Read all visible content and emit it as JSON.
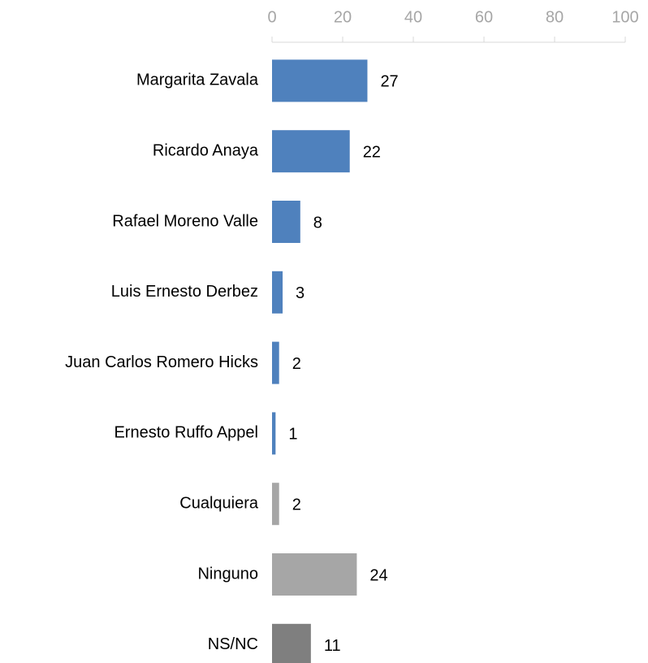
{
  "chart_data": {
    "type": "bar",
    "orientation": "horizontal",
    "categories": [
      "Margarita Zavala",
      "Ricardo Anaya",
      "Rafael Moreno Valle",
      "Luis Ernesto Derbez",
      "Juan Carlos Romero Hicks",
      "Ernesto Ruffo Appel",
      "Cualquiera",
      "Ninguno",
      "NS/NC"
    ],
    "values": [
      27,
      22,
      8,
      3,
      2,
      1,
      2,
      24,
      11
    ],
    "colors": [
      "#4f81bd",
      "#4f81bd",
      "#4f81bd",
      "#4f81bd",
      "#4f81bd",
      "#4f81bd",
      "#a6a6a6",
      "#a6a6a6",
      "#7f7f7f"
    ],
    "xlim": [
      0,
      100
    ],
    "xticks": [
      0,
      20,
      40,
      60,
      80,
      100
    ],
    "grid": false
  }
}
